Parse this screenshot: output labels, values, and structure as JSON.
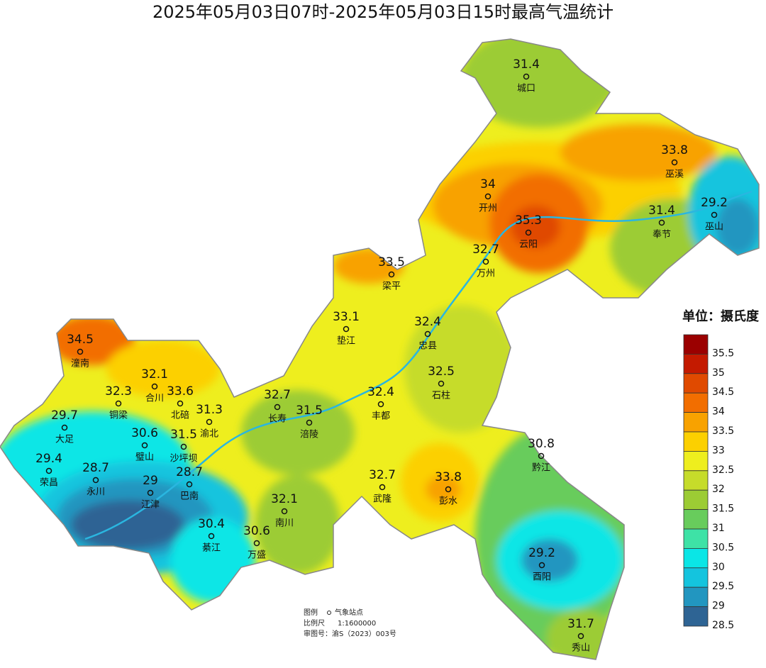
{
  "title": "2025年05月03日07时-2025年05月03日15时最高气温统计",
  "unit_label": "单位：摄氏度",
  "legend": {
    "levels": [
      35.5,
      35,
      34.5,
      34,
      33.5,
      33,
      32.5,
      32,
      31.5,
      31,
      30.5,
      30,
      29.5,
      29,
      28.5
    ],
    "colors": [
      "#9b0000",
      "#c41a00",
      "#e04a00",
      "#f26e00",
      "#f8a200",
      "#fcd000",
      "#eeee1e",
      "#c6dc2a",
      "#9ccc34",
      "#68cc5c",
      "#3ee2a6",
      "#0ae6e6",
      "#14c4de",
      "#2296c0",
      "#2e6494"
    ]
  },
  "stations": [
    {
      "name": "城口",
      "value": 31.4
    },
    {
      "name": "巫溪",
      "value": 33.8
    },
    {
      "name": "开州",
      "value": 34
    },
    {
      "name": "云阳",
      "value": 35.3
    },
    {
      "name": "巫山",
      "value": 29.2
    },
    {
      "name": "奉节",
      "value": 31.4
    },
    {
      "name": "万州",
      "value": 32.7
    },
    {
      "name": "梁平",
      "value": 33.5
    },
    {
      "name": "垫江",
      "value": 33.1
    },
    {
      "name": "忠县",
      "value": 32.4
    },
    {
      "name": "潼南",
      "value": 34.5
    },
    {
      "name": "合川",
      "value": 32.1
    },
    {
      "name": "石柱",
      "value": 32.5
    },
    {
      "name": "铜梁",
      "value": 32.3
    },
    {
      "name": "北碚",
      "value": 33.6
    },
    {
      "name": "长寿",
      "value": 32.7
    },
    {
      "name": "渝北",
      "value": 31.3
    },
    {
      "name": "丰都",
      "value": 32.4
    },
    {
      "name": "涪陵",
      "value": 31.5
    },
    {
      "name": "大足",
      "value": 29.7
    },
    {
      "name": "璧山",
      "value": 30.6
    },
    {
      "name": "沙坪坝",
      "value": 31.5
    },
    {
      "name": "黔江",
      "value": 30.8
    },
    {
      "name": "荣昌",
      "value": 29.4
    },
    {
      "name": "永川",
      "value": 28.7
    },
    {
      "name": "江津",
      "value": 29
    },
    {
      "name": "巴南",
      "value": 28.7
    },
    {
      "name": "武隆",
      "value": 32.7
    },
    {
      "name": "彭水",
      "value": 33.8
    },
    {
      "name": "南川",
      "value": 32.1
    },
    {
      "name": "綦江",
      "value": 30.4
    },
    {
      "name": "万盛",
      "value": 30.6
    },
    {
      "name": "酉阳",
      "value": 29.2
    },
    {
      "name": "秀山",
      "value": 31.7
    }
  ],
  "notes": {
    "legend_label": "图例",
    "station_label": "气象站点",
    "scale_label": "比例尺",
    "scale": "1:1600000",
    "approval": "审图号：渝S（2023）003号"
  }
}
